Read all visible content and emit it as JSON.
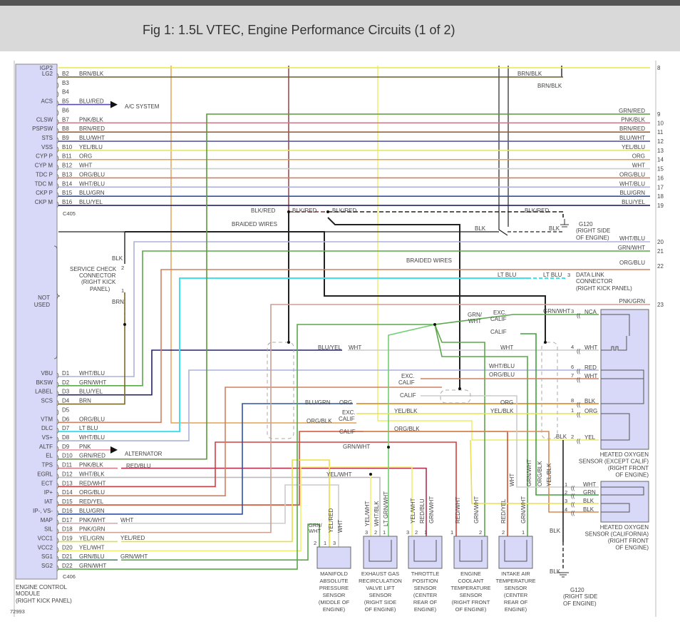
{
  "title": "Fig 1: 1.5L VTEC, Engine Performance Circuits (1 of 2)",
  "figure_number": "72993",
  "wire_colors": {
    "YEL": "#e8e84a",
    "BRN/BLK": "#6b5a2a",
    "BLU/RED": "#5b4aa8",
    "GRN/RED": "#5a9a3a",
    "PNK/BLK": "#c9808a",
    "BRN/RED": "#a0603a",
    "BLU/WHT": "#5a5aa8",
    "YEL/BLU": "#e3e36a",
    "ORG": "#e0a050",
    "WHT": "#cccccc",
    "ORG/BLU": "#d08060",
    "WHT/BLU": "#aab2d8",
    "BLU/GRN": "#3050a8",
    "BLU/YEL": "#242466",
    "BLK": "#222222",
    "BLK/RED": "#7a3a3a",
    "GRN/WHT": "#5aa84a",
    "LT BLU": "#40e0f0",
    "PNK/GRN": "#c8a090",
    "BRN": "#7a6a2a",
    "PNK": "#e890a0",
    "RED/BLU": "#b03050",
    "WHT/BLK": "#bbbbbb",
    "RED/WHT": "#d04040",
    "RED/YEL": "#d05030",
    "YEL/RED": "#e8e040",
    "YEL/WHT": "#f0f070",
    "YEL/BLK": "#e8e050",
    "ORG/BLK": "#d88a50",
    "RED": "#d03030",
    "GRN": "#40a040",
    "LT GRN/WHT": "#70d070",
    "PNK/WHT": "#e0a0b0",
    "GRN/BLU": "#4a8a6a",
    "YEL/GRN": "#d8e050",
    "BRN2": "#8a5a2a"
  },
  "ecm": {
    "name_lines": [
      "ENGINE CONTROL",
      "MODULE",
      "(RIGHT KICK PANEL)"
    ],
    "connector_b": "C405",
    "connector_d": "C406",
    "not_used": [
      "NOT",
      "USED"
    ],
    "pins_b": [
      {
        "pin": "",
        "func": "IGP2",
        "wire": ""
      },
      {
        "pin": "B2",
        "func": "LG2",
        "wire": "BRN/BLK"
      },
      {
        "pin": "B3",
        "func": "",
        "wire": ""
      },
      {
        "pin": "B4",
        "func": "",
        "wire": ""
      },
      {
        "pin": "B5",
        "func": "ACS",
        "wire": "BLU/RED"
      },
      {
        "pin": "B6",
        "func": "",
        "wire": ""
      },
      {
        "pin": "B7",
        "func": "CLSW",
        "wire": "PNK/BLK"
      },
      {
        "pin": "B8",
        "func": "PSPSW",
        "wire": "BRN/RED"
      },
      {
        "pin": "B9",
        "func": "STS",
        "wire": "BLU/WHT"
      },
      {
        "pin": "B10",
        "func": "VSS",
        "wire": "YEL/BLU"
      },
      {
        "pin": "B11",
        "func": "CYP P",
        "wire": "ORG"
      },
      {
        "pin": "B12",
        "func": "CYP M",
        "wire": "WHT"
      },
      {
        "pin": "B13",
        "func": "TDC P",
        "wire": "ORG/BLU"
      },
      {
        "pin": "B14",
        "func": "TDC M",
        "wire": "WHT/BLU"
      },
      {
        "pin": "B15",
        "func": "CKP P",
        "wire": "BLU/GRN"
      },
      {
        "pin": "B16",
        "func": "CKP M",
        "wire": "BLU/YEL"
      }
    ],
    "pins_d": [
      {
        "pin": "D1",
        "func": "VBU",
        "wire": "WHT/BLU"
      },
      {
        "pin": "D2",
        "func": "BKSW",
        "wire": "GRN/WHT"
      },
      {
        "pin": "D3",
        "func": "LABEL",
        "wire": "BLU/YEL"
      },
      {
        "pin": "D4",
        "func": "SCS",
        "wire": "BRN"
      },
      {
        "pin": "D5",
        "func": "",
        "wire": ""
      },
      {
        "pin": "D6",
        "func": "VTM",
        "wire": "ORG/BLU"
      },
      {
        "pin": "D7",
        "func": "DLC",
        "wire": "LT BLU"
      },
      {
        "pin": "D8",
        "func": "VS+",
        "wire": "WHT/BLU"
      },
      {
        "pin": "D9",
        "func": "ALTF",
        "wire": "PNK"
      },
      {
        "pin": "D10",
        "func": "EL",
        "wire": "GRN/RED"
      },
      {
        "pin": "D11",
        "func": "TPS",
        "wire": "PNK/BLK"
      },
      {
        "pin": "D12",
        "func": "EGRL",
        "wire": "WHT/BLK"
      },
      {
        "pin": "D13",
        "func": "ECT",
        "wire": "RED/WHT"
      },
      {
        "pin": "D14",
        "func": "IP+",
        "wire": "ORG/BLU"
      },
      {
        "pin": "D15",
        "func": "IAT",
        "wire": "RED/YEL"
      },
      {
        "pin": "D16",
        "func": "IP-, VS-",
        "wire": "BLU/GRN"
      },
      {
        "pin": "D17",
        "func": "MAP",
        "wire": "PNK/WHT"
      },
      {
        "pin": "D18",
        "func": "SIL",
        "wire": "PNK/GRN"
      },
      {
        "pin": "D19",
        "func": "VCC1",
        "wire": "YEL/GRN"
      },
      {
        "pin": "D20",
        "func": "VCC2",
        "wire": "YEL/WHT"
      },
      {
        "pin": "D21",
        "func": "SG1",
        "wire": "GRN/BLU"
      },
      {
        "pin": "D22",
        "func": "SG2",
        "wire": "GRN/WHT"
      }
    ]
  },
  "right_terminals": [
    {
      "num": "8",
      "wire": ""
    },
    {
      "num": "9",
      "wire": "GRN/RED"
    },
    {
      "num": "10",
      "wire": "PNK/BLK"
    },
    {
      "num": "11",
      "wire": "BRN/RED"
    },
    {
      "num": "12",
      "wire": "BLU/WHT"
    },
    {
      "num": "13",
      "wire": "YEL/BLU"
    },
    {
      "num": "14",
      "wire": "ORG"
    },
    {
      "num": "15",
      "wire": "WHT"
    },
    {
      "num": "16",
      "wire": "ORG/BLU"
    },
    {
      "num": "17",
      "wire": "WHT/BLU"
    },
    {
      "num": "18",
      "wire": "BLU/GRN"
    },
    {
      "num": "19",
      "wire": "BLU/YEL"
    },
    {
      "num": "20",
      "wire": "WHT/BLU"
    },
    {
      "num": "21",
      "wire": "GRN/WHT"
    },
    {
      "num": "22",
      "wire": "ORG/BLU"
    },
    {
      "num": "23",
      "wire": "PNK/GRN"
    }
  ],
  "labels": {
    "ac_system": "A/C SYSTEM",
    "alternator": "ALTERNATOR",
    "brn_blk_1": "BRN/BLK",
    "brn_blk_2": "BRN/BLK",
    "blk_red_1": "BLK/RED",
    "blk_red_2": "BLK/RED",
    "blk_red_3": "BLK/RED",
    "blk_red_4": "BLK/RED",
    "braided_1": "BRAIDED WIRES",
    "braided_2": "BRAIDED WIRES",
    "blk_1": "BLK",
    "blk_2": "BLK",
    "blk_svc": "BLK",
    "brn_svc": "BRN",
    "svc_pin_2": "2",
    "svc_pin_1": "1",
    "lt_blu_1": "LT BLU",
    "lt_blu_2": "LT BLU",
    "dlc_pin": "3",
    "blu_yel": "BLU/YEL",
    "wht_a": "WHT",
    "wht_b": "WHT",
    "wht_blu_c": "WHT/BLU",
    "org_blu_c": "ORG/BLU",
    "grn_wht_node": "GRN/",
    "grn_wht_node2": "WHT",
    "exc_calif_1": "EXC.",
    "exc_calif_1b": "CALIF",
    "calif_1": "CALIF",
    "exc_calif_2": "EXC.",
    "exc_calif_2b": "CALIF",
    "calif_2": "CALIF",
    "exc_calif_3": "EXC.",
    "exc_calif_3b": "CALIF",
    "calif_3": "CALIF",
    "grn_wht_3": "GRN/WHT",
    "blu_grn_c": "BLU/GRN",
    "org_c": "ORG",
    "org_r": "ORG",
    "yel_blk_1": "YEL/BLK",
    "yel_blk_2": "YEL/BLK",
    "org_blk_1": "ORG/BLK",
    "org_blk_2": "ORG/BLK",
    "grn_wht_mid": "GRN/WHT",
    "yel_wht_mid": "YEL/WHT",
    "red_blu": "RED/BLU",
    "wht_d17": "WHT",
    "yel_red_d19": "YEL/RED",
    "grn_wht_d21": "GRN/WHT",
    "blk_2_o2": "BLK",
    "blk_g1": "BLK",
    "v_wht": "WHT",
    "v_grn_wht": "GRN/WHT",
    "v_org_blk": "ORG/BLK",
    "v_yel_blk": "YEL/BLK",
    "v_red_yel": "RED/YEL",
    "v_grn_wht_iat": "GRN/WHT",
    "v_red_wht": "RED/WHT",
    "v_grn_wht_ect": "GRN/WHT",
    "v_yel_wht_tps": "YEL/WHT",
    "v_red_blu_tps": "RED/BLU",
    "v_grn_wht_tps": "GRN/WHT",
    "v_yel_wht_egr": "YEL/WHT",
    "v_wht_blk_egr": "WHT/BLK",
    "v_ltgrn_egr": "LT GRN/WHT",
    "map_grn": "GRN/",
    "map_grn2": "WHT",
    "v_yel_red_map": "YEL/RED",
    "v_wht_map": "WHT"
  },
  "service_check": [
    "SERVICE CHECK",
    "CONNECTOR",
    "(RIGHT KICK",
    "PANEL)"
  ],
  "data_link": [
    "DATA LINK",
    "CONNECTOR",
    "(RIGHT KICK PANEL)"
  ],
  "ground_top": [
    "G120",
    "(RIGHT SIDE",
    "OF ENGINE)"
  ],
  "ground_bottom": [
    "G120",
    "(RIGHT SIDE",
    "OF ENGINE)"
  ],
  "o2_exc": {
    "name_lines": [
      "HEATED OXYGEN",
      "SENSOR (EXCEPT CALIF)",
      "(RIGHT FRONT",
      "OF ENGINE)"
    ],
    "pins": [
      {
        "num": "3",
        "wire": "NCA"
      },
      {
        "num": "4",
        "wire": "WHT"
      },
      {
        "num": "6",
        "wire": "RED"
      },
      {
        "num": "7",
        "wire": "WHT"
      },
      {
        "num": "8",
        "wire": "BLK"
      },
      {
        "num": "1",
        "wire": "ORG"
      },
      {
        "num": "2",
        "wire": "YEL"
      }
    ]
  },
  "o2_calif": {
    "name_lines": [
      "HEATED OXYGEN",
      "SENSOR (CALIFORNIA)",
      "(RIGHT FRONT",
      "OF ENGINE)"
    ],
    "pins": [
      {
        "num": "1",
        "wire": "WHT"
      },
      {
        "num": "2",
        "wire": "GRN"
      },
      {
        "num": "3",
        "wire": "BLK"
      },
      {
        "num": "4",
        "wire": "BLK"
      }
    ]
  },
  "sensors": [
    {
      "id": "map",
      "name_lines": [
        "MANIFOLD",
        "ABSOLUTE",
        "PRESSURE",
        "SENSOR",
        "(MIDDLE OF",
        "ENGINE)"
      ],
      "pins": [
        "2",
        "1",
        "3"
      ]
    },
    {
      "id": "egr",
      "name_lines": [
        "EXHAUST GAS",
        "RECIRCULATION",
        "VALVE LIFT",
        "SENSOR",
        "(RIGHT SIDE",
        "OF ENGINE)"
      ],
      "pins": [
        "3",
        "2",
        "1"
      ]
    },
    {
      "id": "tps",
      "name_lines": [
        "THROTTLE",
        "POSITION",
        "SENSOR",
        "(CENTER",
        "REAR OF",
        "ENGINE)"
      ],
      "pins": [
        "3",
        "2",
        "1"
      ]
    },
    {
      "id": "ect",
      "name_lines": [
        "ENGINE",
        "COOLANT",
        "TEMPERATURE",
        "SENSOR",
        "(RIGHT FRONT",
        "OF ENGINE)"
      ],
      "pins": [
        "1",
        "2"
      ]
    },
    {
      "id": "iat",
      "name_lines": [
        "INTAKE AIR",
        "TEMPERATURE",
        "SENSOR",
        "(CENTER",
        "REAR OF",
        "ENGINE)"
      ],
      "pins": [
        "2",
        "1"
      ]
    }
  ]
}
